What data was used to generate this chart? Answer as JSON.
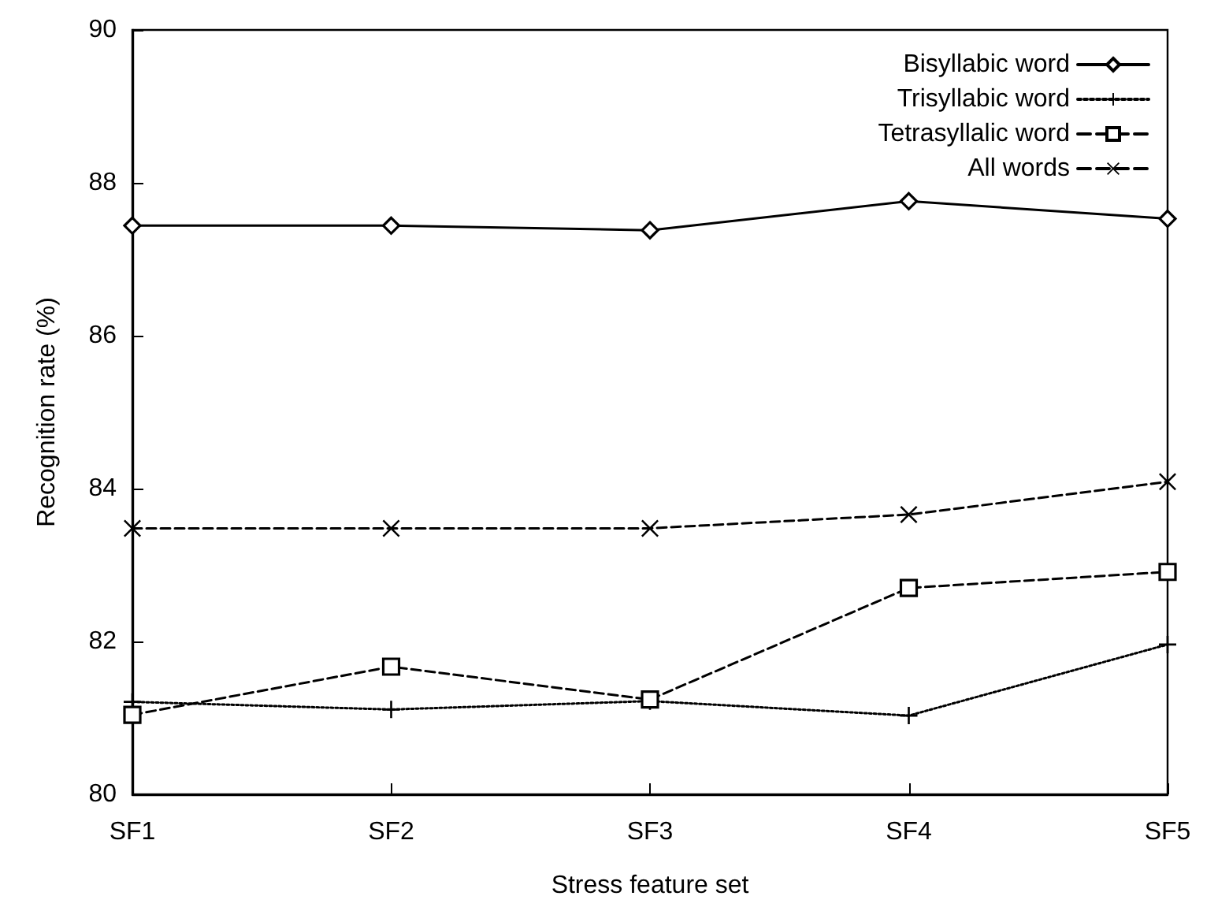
{
  "chart_data": {
    "type": "line",
    "xlabel": "Stress feature set",
    "ylabel": "Recognition rate (%)",
    "categories": [
      "SF1",
      "SF2",
      "SF3",
      "SF4",
      "SF5"
    ],
    "ylim": [
      80,
      90
    ],
    "yticks": [
      80,
      82,
      84,
      86,
      88,
      90
    ],
    "grid": false,
    "legend": "top right",
    "series": [
      {
        "name": "Bisyllabic word",
        "color": "#000000",
        "marker": "diamond",
        "line_style": "solid",
        "values": [
          87.44,
          87.44,
          87.38,
          87.76,
          87.53
        ]
      },
      {
        "name": "Trisyllabic word",
        "color": "#000000",
        "marker": "plus",
        "line_style": "dotted",
        "values": [
          81.21,
          81.11,
          81.22,
          81.03,
          81.96
        ]
      },
      {
        "name": "Tetrasyllalic word",
        "color": "#000000",
        "marker": "square",
        "line_style": "dashed",
        "values": [
          81.04,
          81.67,
          81.24,
          82.7,
          82.91
        ]
      },
      {
        "name": "All words",
        "color": "#000000",
        "marker": "cross",
        "line_style": "dashed",
        "values": [
          83.48,
          83.48,
          83.48,
          83.66,
          84.09
        ]
      }
    ]
  }
}
